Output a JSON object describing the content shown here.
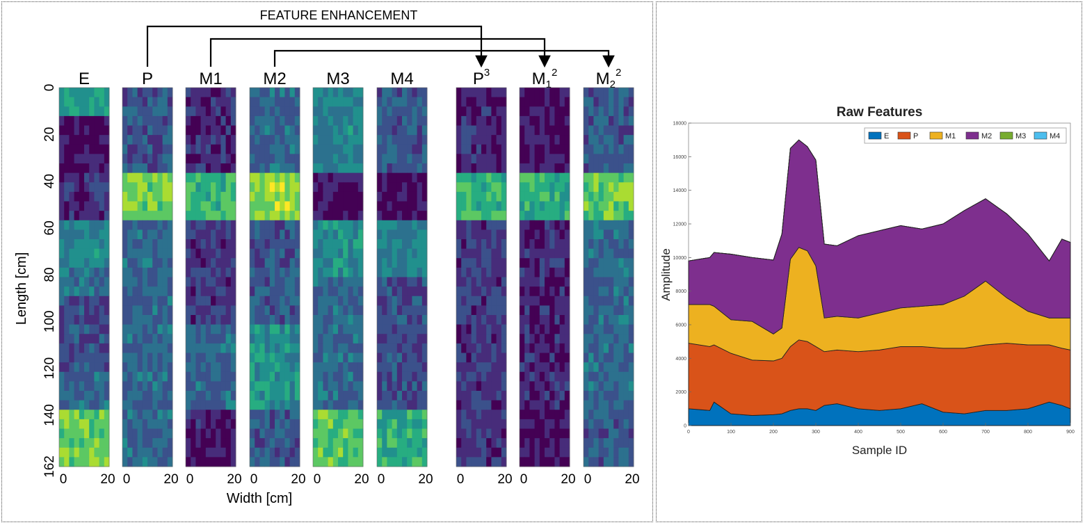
{
  "heatmap_panel": {
    "enhancement_label": "FEATURE ENHANCEMENT",
    "ylabel": "Length  [cm]",
    "xlabel": "Width [cm]",
    "y_ticks": [
      "0",
      "20",
      "40",
      "60",
      "80",
      "100",
      "120",
      "140",
      "162"
    ],
    "x_ticks": [
      "0",
      "20"
    ],
    "columns": [
      {
        "id": "E",
        "label": "E",
        "sup": ""
      },
      {
        "id": "P",
        "label": "P",
        "sup": ""
      },
      {
        "id": "M1",
        "label": "M1",
        "sup": ""
      },
      {
        "id": "M2",
        "label": "M2",
        "sup": ""
      },
      {
        "id": "M3",
        "label": "M3",
        "sup": ""
      },
      {
        "id": "M4",
        "label": "M4",
        "sup": ""
      },
      {
        "id": "P3",
        "label": "P",
        "sup": "3"
      },
      {
        "id": "M1sq",
        "label": "M",
        "sub": "1",
        "sup": "2"
      },
      {
        "id": "M2sq",
        "label": "M",
        "sub": "2",
        "sup": "2"
      }
    ],
    "arrows": [
      {
        "from": "P",
        "to": "P3"
      },
      {
        "from": "M1",
        "to": "M1sq"
      },
      {
        "from": "M2",
        "to": "M2sq"
      }
    ]
  },
  "chart_data": {
    "type": "area",
    "stacked": true,
    "title": "Raw Features",
    "xlabel": "Sample ID",
    "ylabel": "Amplitude",
    "xlim": [
      0,
      900
    ],
    "ylim": [
      0,
      18000
    ],
    "x_ticks": [
      0,
      100,
      200,
      300,
      400,
      500,
      600,
      700,
      800,
      900
    ],
    "y_ticks": [
      0,
      2000,
      4000,
      6000,
      8000,
      10000,
      12000,
      14000,
      16000,
      18000
    ],
    "legend_position": "top-right",
    "x": [
      0,
      50,
      60,
      100,
      150,
      200,
      220,
      240,
      260,
      280,
      300,
      320,
      350,
      400,
      450,
      500,
      550,
      600,
      650,
      700,
      750,
      800,
      850,
      880,
      900
    ],
    "series": [
      {
        "name": "E",
        "color": "#0072BD",
        "values": [
          1000,
          900,
          1400,
          700,
          600,
          650,
          700,
          900,
          1000,
          1000,
          900,
          1200,
          1300,
          1000,
          900,
          1000,
          1300,
          800,
          700,
          900,
          900,
          1000,
          1400,
          1200,
          1000
        ]
      },
      {
        "name": "P",
        "color": "#D95319",
        "values": [
          3900,
          3800,
          3400,
          3600,
          3300,
          3200,
          3300,
          3800,
          4100,
          4000,
          3800,
          3200,
          3200,
          3400,
          3600,
          3700,
          3400,
          3800,
          3900,
          3900,
          4000,
          3800,
          3400,
          3400,
          3500
        ]
      },
      {
        "name": "M1",
        "color": "#EDB120",
        "values": [
          2300,
          2500,
          2300,
          2000,
          2300,
          1600,
          1800,
          5200,
          5500,
          5400,
          4800,
          2000,
          2000,
          2000,
          2200,
          2300,
          2400,
          2600,
          3100,
          3800,
          2700,
          2000,
          1600,
          1800,
          1900
        ]
      },
      {
        "name": "M2",
        "color": "#7E2F8E",
        "values": [
          2600,
          2800,
          3200,
          3900,
          3800,
          4400,
          5600,
          6600,
          6400,
          6200,
          6300,
          4400,
          4200,
          4900,
          4900,
          4900,
          4600,
          4800,
          5100,
          4900,
          5000,
          4600,
          3400,
          4700,
          4500
        ]
      },
      {
        "name": "M3",
        "color": "#77AC30",
        "values": [
          0,
          0,
          0,
          0,
          0,
          0,
          0,
          0,
          0,
          0,
          0,
          0,
          0,
          0,
          0,
          0,
          0,
          0,
          0,
          0,
          0,
          0,
          0,
          0,
          0
        ]
      },
      {
        "name": "M4",
        "color": "#4DBEEE",
        "values": [
          0,
          0,
          0,
          0,
          0,
          0,
          0,
          0,
          0,
          0,
          0,
          0,
          0,
          0,
          0,
          0,
          0,
          0,
          0,
          0,
          0,
          0,
          0,
          0,
          0
        ]
      }
    ]
  }
}
